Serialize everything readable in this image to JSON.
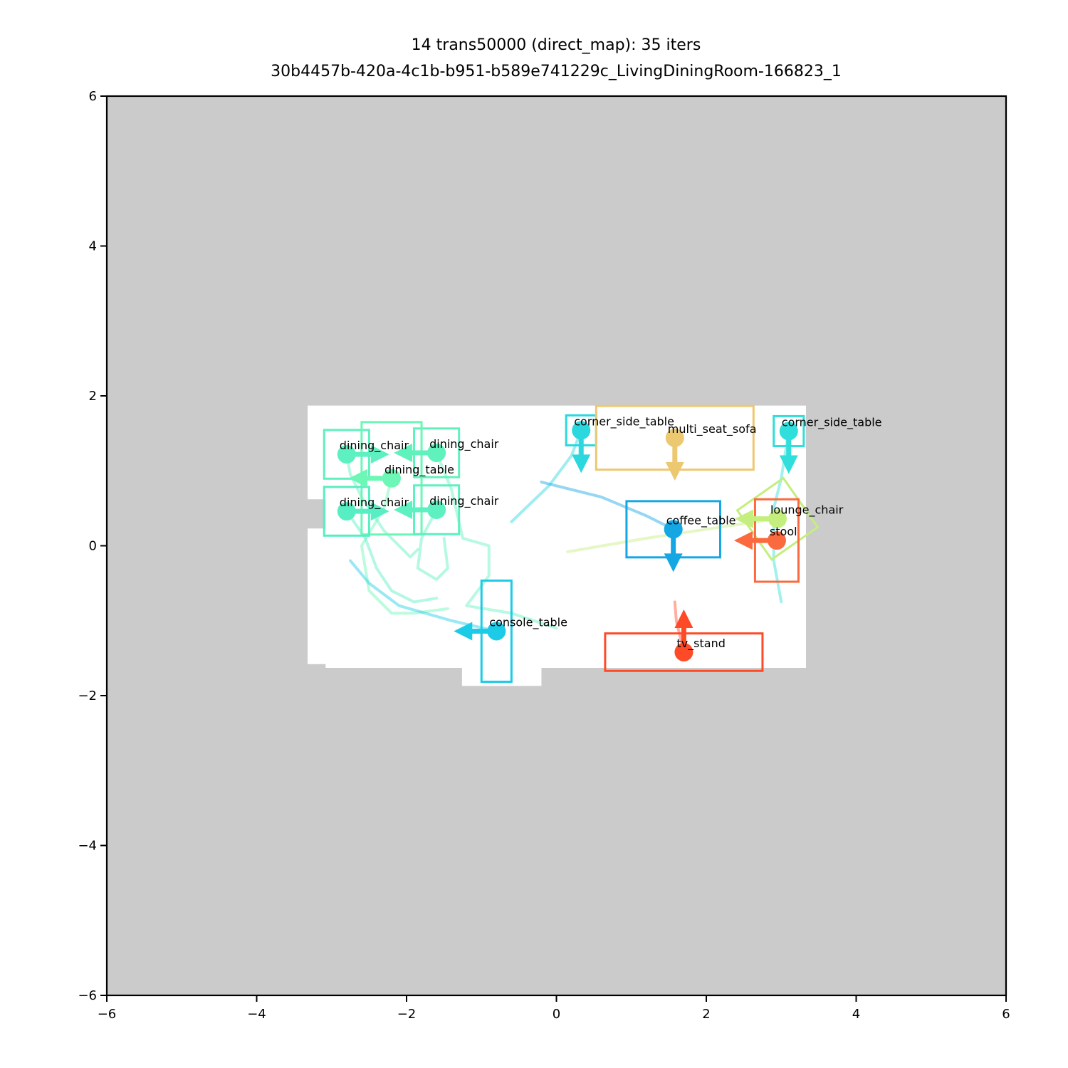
{
  "chart_data": {
    "type": "scatter",
    "title_line1": "14 trans50000 (direct_map): 35 iters",
    "title_line2": "30b4457b-420a-4c1b-b951-b589e741229c_LivingDiningRoom-166823_1",
    "xlim": [
      -6,
      6
    ],
    "ylim": [
      -6,
      6
    ],
    "xticks": [
      -6,
      -4,
      -2,
      0,
      2,
      4,
      6
    ],
    "yticks": [
      -6,
      -4,
      -2,
      0,
      2,
      4,
      6
    ],
    "xtick_labels": [
      "−6",
      "−4",
      "−2",
      "0",
      "2",
      "4",
      "6"
    ],
    "ytick_labels": [
      "−6",
      "−4",
      "−2",
      "0",
      "2",
      "4",
      "6"
    ],
    "background_color": "#cbcbcb",
    "floor_color": "#ffffff",
    "floor_polygon": [
      [
        -3.32,
        1.87
      ],
      [
        3.33,
        1.87
      ],
      [
        3.33,
        -1.63
      ],
      [
        -0.2,
        -1.63
      ],
      [
        -0.2,
        -1.87
      ],
      [
        -1.26,
        -1.87
      ],
      [
        -1.26,
        -1.63
      ],
      [
        -3.08,
        -1.63
      ],
      [
        -3.08,
        -1.58
      ],
      [
        -3.32,
        -1.58
      ],
      [
        -3.32,
        0.23
      ],
      [
        -3.08,
        0.23
      ],
      [
        -3.08,
        0.62
      ],
      [
        -3.32,
        0.62
      ]
    ],
    "objects": [
      {
        "label": "dining_chair",
        "color": "#5ef0c0",
        "x": -2.8,
        "y": 1.22,
        "width": 0.6,
        "depth": 0.65,
        "angle": 0,
        "dir": [
          1,
          0
        ],
        "path": [
          [
            -2.8,
            1.22
          ],
          [
            -2.75,
            0.95
          ],
          [
            -2.6,
            0.65
          ],
          [
            -2.3,
            0.2
          ],
          [
            -1.95,
            -0.15
          ],
          [
            -1.85,
            -0.05
          ]
        ]
      },
      {
        "label": "dining_chair",
        "color": "#60f2bc",
        "x": -1.6,
        "y": 1.24,
        "width": 0.6,
        "depth": 0.65,
        "angle": 0,
        "dir": [
          -1,
          0
        ],
        "path": [
          [
            -1.6,
            1.24
          ],
          [
            -1.4,
            0.75
          ],
          [
            -1.25,
            0.1
          ],
          [
            -0.9,
            0.0
          ],
          [
            -0.9,
            -0.4
          ],
          [
            -1.2,
            -0.8
          ],
          [
            -0.6,
            -0.9
          ],
          [
            0.0,
            -1.1
          ]
        ]
      },
      {
        "label": "dining_table",
        "color": "#6cf7b6",
        "x": -2.2,
        "y": 0.9,
        "width": 0.8,
        "depth": 1.5,
        "angle": 0,
        "dir": [
          -1,
          0
        ],
        "path": [
          [
            -2.2,
            0.9
          ],
          [
            -2.3,
            0.5
          ],
          [
            -2.6,
            0.0
          ],
          [
            -2.5,
            -0.6
          ],
          [
            -2.2,
            -0.9
          ],
          [
            -1.9,
            -0.9
          ],
          [
            -1.45,
            -0.84
          ]
        ]
      },
      {
        "label": "dining_chair",
        "color": "#58eec4",
        "x": -2.8,
        "y": 0.46,
        "width": 0.6,
        "depth": 0.65,
        "angle": 0,
        "dir": [
          1,
          0
        ],
        "path": [
          [
            -2.8,
            0.46
          ],
          [
            -2.55,
            0.1
          ],
          [
            -2.4,
            -0.3
          ],
          [
            -2.2,
            -0.6
          ],
          [
            -1.9,
            -0.75
          ],
          [
            -1.6,
            -0.7
          ]
        ]
      },
      {
        "label": "dining_chair",
        "color": "#5df0c1",
        "x": -1.6,
        "y": 0.48,
        "width": 0.6,
        "depth": 0.65,
        "angle": 0,
        "dir": [
          -1,
          0
        ],
        "path": [
          [
            -1.6,
            0.48
          ],
          [
            -1.8,
            0.1
          ],
          [
            -1.85,
            -0.3
          ],
          [
            -1.6,
            -0.45
          ],
          [
            -1.45,
            -0.3
          ],
          [
            -1.5,
            0.1
          ]
        ]
      },
      {
        "label": "console_table",
        "color": "#1ccbe6",
        "x": -0.8,
        "y": -1.14,
        "width": 0.4,
        "depth": 1.35,
        "angle": 0,
        "dir": [
          -1,
          0
        ],
        "path": [
          [
            -0.8,
            -1.14
          ],
          [
            -1.4,
            -1.0
          ],
          [
            -2.1,
            -0.8
          ],
          [
            -2.5,
            -0.5
          ],
          [
            -2.75,
            -0.2
          ]
        ]
      },
      {
        "label": "corner_side_table",
        "color": "#2ad8de",
        "x": 0.33,
        "y": 1.54,
        "width": 0.4,
        "depth": 0.4,
        "angle": 0,
        "dir": [
          0,
          -1
        ],
        "path": [
          [
            0.33,
            1.54
          ],
          [
            0.2,
            1.2
          ],
          [
            -0.1,
            0.8
          ],
          [
            -0.6,
            0.32
          ]
        ]
      },
      {
        "label": "multi_seat_sofa",
        "color": "#ecc870",
        "x": 1.58,
        "y": 1.44,
        "width": 2.1,
        "depth": 0.85,
        "angle": 0,
        "dir": [
          0,
          -1
        ],
        "path": [
          [
            1.58,
            1.44
          ],
          [
            1.58,
            1.2
          ]
        ]
      },
      {
        "label": "corner_side_table",
        "color": "#30dedb",
        "x": 3.1,
        "y": 1.53,
        "width": 0.4,
        "depth": 0.4,
        "angle": 0,
        "dir": [
          0,
          -1
        ],
        "path": [
          [
            3.1,
            1.53
          ],
          [
            3.0,
            0.9
          ],
          [
            2.9,
            0.5
          ],
          [
            2.9,
            -0.2
          ],
          [
            3.0,
            -0.75
          ]
        ]
      },
      {
        "label": "lounge_chair",
        "color": "#c4ee7e",
        "x": 2.95,
        "y": 0.36,
        "width": 0.75,
        "depth": 0.8,
        "angle": 35,
        "dir": [
          -1,
          0
        ],
        "path": [
          [
            2.95,
            0.36
          ],
          [
            2.2,
            0.25
          ],
          [
            1.2,
            0.1
          ],
          [
            0.15,
            -0.08
          ]
        ]
      },
      {
        "label": "coffee_table",
        "color": "#15a6e4",
        "x": 1.56,
        "y": 0.22,
        "width": 1.25,
        "depth": 0.75,
        "angle": 0,
        "dir": [
          0,
          -1
        ],
        "path": [
          [
            1.56,
            0.22
          ],
          [
            1.2,
            0.4
          ],
          [
            0.6,
            0.65
          ],
          [
            -0.2,
            0.85
          ]
        ]
      },
      {
        "label": "stool",
        "color": "#fb6a3e",
        "x": 2.94,
        "y": 0.07,
        "width": 0.58,
        "depth": 1.1,
        "angle": 0,
        "dir": [
          -1,
          0
        ],
        "path": [
          [
            2.94,
            0.07
          ],
          [
            2.75,
            0.07
          ]
        ]
      },
      {
        "label": "tv_stand",
        "color": "#ff4a28",
        "x": 1.7,
        "y": -1.42,
        "width": 2.1,
        "depth": 0.5,
        "angle": 0,
        "dir": [
          0,
          1
        ],
        "path": [
          [
            1.7,
            -1.42
          ],
          [
            1.6,
            -1.0
          ],
          [
            1.58,
            -0.75
          ]
        ]
      }
    ]
  }
}
